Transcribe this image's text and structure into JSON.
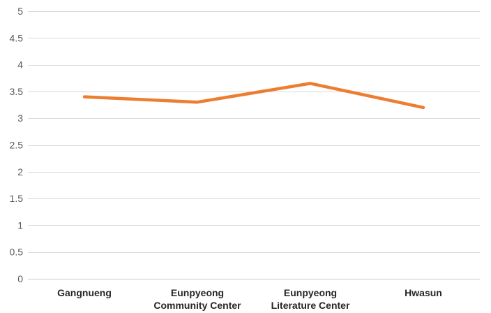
{
  "chart_data": {
    "type": "line",
    "title": "",
    "categories": [
      "Gangnueng",
      "Eunpyeong Community Center",
      "Eunpyeong Literature Center",
      "Hwasun"
    ],
    "category_lines": [
      [
        "Gangnueng"
      ],
      [
        "Eunpyeong",
        "Community Center"
      ],
      [
        "Eunpyeong",
        "Literature Center"
      ],
      [
        "Hwasun"
      ]
    ],
    "series": [
      {
        "name": "",
        "values": [
          3.4,
          3.3,
          3.65,
          3.2
        ]
      }
    ],
    "y_axis": {
      "min": 0,
      "max": 5,
      "step": 0.5,
      "tick_labels": [
        "0",
        "0.5",
        "1",
        "1.5",
        "2",
        "2.5",
        "3",
        "3.5",
        "4",
        "4.5",
        "5"
      ]
    },
    "x_axis": {
      "tick_labels": [
        "Gangnueng",
        "Eunpyeong Community Center",
        "Eunpyeong Literature Center",
        "Hwasun"
      ]
    },
    "grid": true,
    "legend": "none",
    "ylim": [
      0,
      5
    ]
  },
  "colors": {
    "series_line": "#ED7D31",
    "gridline": "#D9D9D9",
    "baseline": "#C9C9C9",
    "y_tick_label": "#595959",
    "x_category_label": "#262626",
    "background": "#FFFFFF"
  }
}
